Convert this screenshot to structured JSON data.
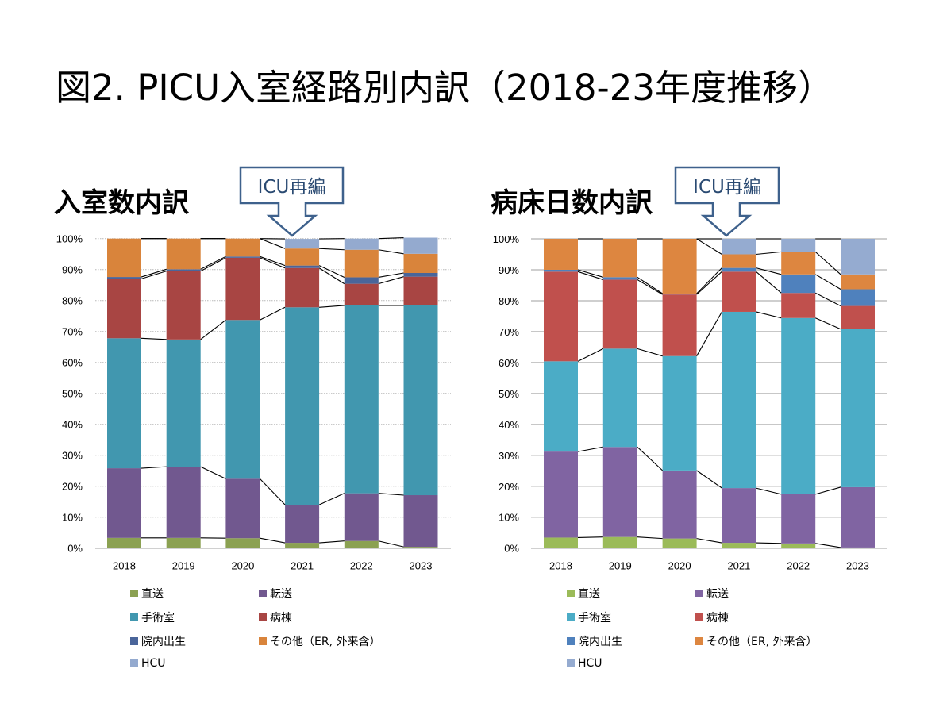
{
  "page": {
    "title": "図2. PICU入室経路別内訳（2018-23年度推移）"
  },
  "chart_data": [
    {
      "type": "bar",
      "stacked": true,
      "title": "入室数内訳",
      "annotation": "ICU再編",
      "annotation_target": "2021",
      "categories": [
        "2018",
        "2019",
        "2020",
        "2021",
        "2022",
        "2023"
      ],
      "ylim": [
        0,
        100
      ],
      "yticks": [
        "0%",
        "10%",
        "20%",
        "30%",
        "40%",
        "50%",
        "60%",
        "70%",
        "80%",
        "90%",
        "100%"
      ],
      "grid": "dotted",
      "legend_position": "bottom",
      "series": [
        {
          "name": "直送",
          "color": "#8BA152",
          "values": [
            3.3,
            3.3,
            3.2,
            1.7,
            2.3,
            0.4
          ]
        },
        {
          "name": "転送",
          "color": "#71588F",
          "values": [
            22.5,
            23.0,
            19.2,
            12.3,
            15.4,
            16.7
          ]
        },
        {
          "name": "手術室",
          "color": "#4197AF",
          "values": [
            42.0,
            41.1,
            51.3,
            63.8,
            60.7,
            61.3
          ]
        },
        {
          "name": "病棟",
          "color": "#A84543",
          "values": [
            19.2,
            22.1,
            20.1,
            12.7,
            7.0,
            9.3
          ]
        },
        {
          "name": "院内出生",
          "color": "#4A659A",
          "values": [
            0.6,
            0.6,
            0.4,
            0.8,
            2.1,
            1.2
          ]
        },
        {
          "name": "その他（ER, 外来含）",
          "color": "#D9843B",
          "values": [
            12.4,
            9.9,
            5.8,
            5.5,
            8.9,
            6.2
          ]
        },
        {
          "name": "HCU",
          "color": "#94AACF",
          "values": [
            0,
            0,
            0,
            3.1,
            3.6,
            5.2
          ]
        }
      ]
    },
    {
      "type": "bar",
      "stacked": true,
      "title": "病床日数内訳",
      "annotation": "ICU再編",
      "annotation_target": "2021",
      "categories": [
        "2018",
        "2019",
        "2020",
        "2021",
        "2022",
        "2023"
      ],
      "ylim": [
        0,
        100
      ],
      "yticks": [
        "0%",
        "10%",
        "20%",
        "30%",
        "40%",
        "50%",
        "60%",
        "70%",
        "80%",
        "90%",
        "100%"
      ],
      "grid": "solid",
      "legend_position": "bottom",
      "series": [
        {
          "name": "直送",
          "color": "#9BBB59",
          "values": [
            3.4,
            3.6,
            3.1,
            1.7,
            1.5,
            0.2
          ]
        },
        {
          "name": "転送",
          "color": "#8064A2",
          "values": [
            27.8,
            29.1,
            22.0,
            17.7,
            15.9,
            19.5
          ]
        },
        {
          "name": "手術室",
          "color": "#4BACC6",
          "values": [
            29.2,
            31.8,
            37.0,
            57.0,
            57.0,
            51.1
          ]
        },
        {
          "name": "病棟",
          "color": "#C0504D",
          "values": [
            29.0,
            22.3,
            19.9,
            13.0,
            8.1,
            7.5
          ]
        },
        {
          "name": "院内出生",
          "color": "#4F81BD",
          "values": [
            0.6,
            0.8,
            0.3,
            1.2,
            6.0,
            5.4
          ]
        },
        {
          "name": "その他（ER, 外来含）",
          "color": "#DD8640",
          "values": [
            10.0,
            12.4,
            17.7,
            4.4,
            7.3,
            4.8
          ]
        },
        {
          "name": "HCU",
          "color": "#95ABD0",
          "values": [
            0,
            0,
            0,
            5.0,
            4.2,
            11.5
          ]
        }
      ]
    }
  ]
}
